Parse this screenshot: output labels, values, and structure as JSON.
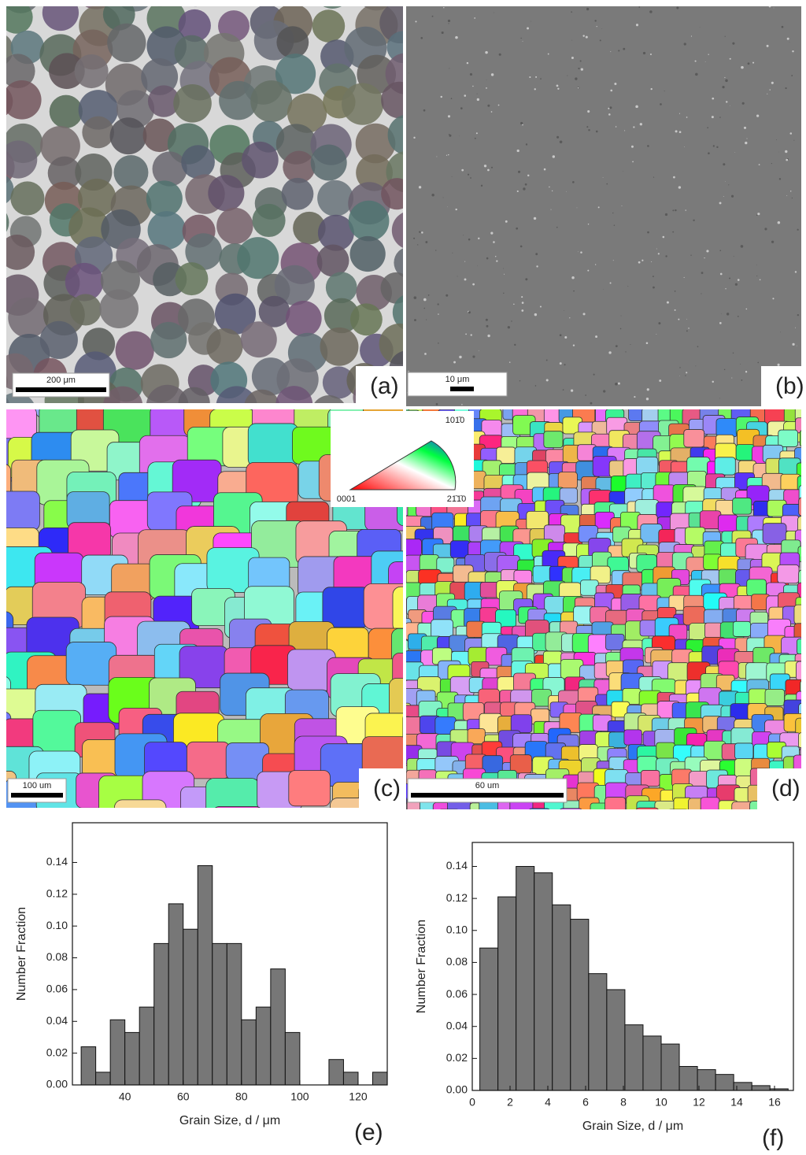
{
  "panels": [
    {
      "label": "(a)",
      "scale_bar": "200 μm"
    },
    {
      "label": "(b)",
      "scale_bar": "10 μm"
    },
    {
      "label": "(c)",
      "scale_bar": "100 um"
    },
    {
      "label": "(d)",
      "scale_bar": "60 um"
    }
  ],
  "ipf_legend": {
    "top": "101̄0",
    "left": "0001",
    "right": "21̄1̄0"
  },
  "chart_data": [
    {
      "type": "histogram",
      "label": "(e)",
      "xlabel": "Grain Size, d / μm",
      "ylabel": "Number Fraction",
      "color": "#777777",
      "bins": [
        25,
        30,
        35,
        40,
        45,
        50,
        55,
        60,
        65,
        70,
        75,
        80,
        85,
        90,
        95,
        100,
        105,
        110,
        115,
        120,
        125,
        130
      ],
      "values": [
        0.024,
        0.008,
        0.041,
        0.033,
        0.049,
        0.089,
        0.114,
        0.098,
        0.138,
        0.089,
        0.089,
        0.041,
        0.049,
        0.073,
        0.033,
        0,
        0,
        0.016,
        0.008,
        0,
        0.008
      ],
      "xlim": [
        22,
        130
      ],
      "xticks": [
        40,
        60,
        80,
        100,
        120
      ],
      "ylim": [
        0,
        0.165
      ],
      "yticks": [
        {
          "value": 0,
          "label": "0.00"
        },
        {
          "value": 0.02,
          "label": "0.02"
        },
        {
          "value": 0.04,
          "label": "0.04"
        },
        {
          "value": 0.06,
          "label": "0.06"
        },
        {
          "value": 0.08,
          "label": "0.08"
        },
        {
          "value": 0.1,
          "label": "0.10"
        },
        {
          "value": 0.12,
          "label": "0.12"
        },
        {
          "value": 0.14,
          "label": "0.14"
        }
      ]
    },
    {
      "type": "histogram",
      "label": "(f)",
      "xlabel": "Grain Size, d / μm",
      "ylabel": "Number Fraction",
      "color": "#777777",
      "bins": [
        0.4,
        1.36,
        2.32,
        3.28,
        4.24,
        5.2,
        6.16,
        7.12,
        8.08,
        9.04,
        10,
        10.96,
        11.92,
        12.88,
        13.84,
        14.8,
        15.76,
        16.72
      ],
      "values": [
        0.089,
        0.121,
        0.14,
        0.136,
        0.116,
        0.107,
        0.073,
        0.063,
        0.041,
        0.034,
        0.029,
        0.015,
        0.013,
        0.01,
        0.005,
        0.003,
        0.001
      ],
      "xlim": [
        0,
        17
      ],
      "xticks": [
        0,
        2,
        4,
        6,
        8,
        10,
        12,
        14,
        16
      ],
      "ylim": [
        0,
        0.155
      ],
      "yticks": [
        {
          "value": 0,
          "label": "0.00"
        },
        {
          "value": 0.02,
          "label": "0.02"
        },
        {
          "value": 0.04,
          "label": "0.04"
        },
        {
          "value": 0.06,
          "label": "0.06"
        },
        {
          "value": 0.08,
          "label": "0.08"
        },
        {
          "value": 0.1,
          "label": "0.10"
        },
        {
          "value": 0.12,
          "label": "0.12"
        },
        {
          "value": 0.14,
          "label": "0.14"
        }
      ]
    }
  ]
}
